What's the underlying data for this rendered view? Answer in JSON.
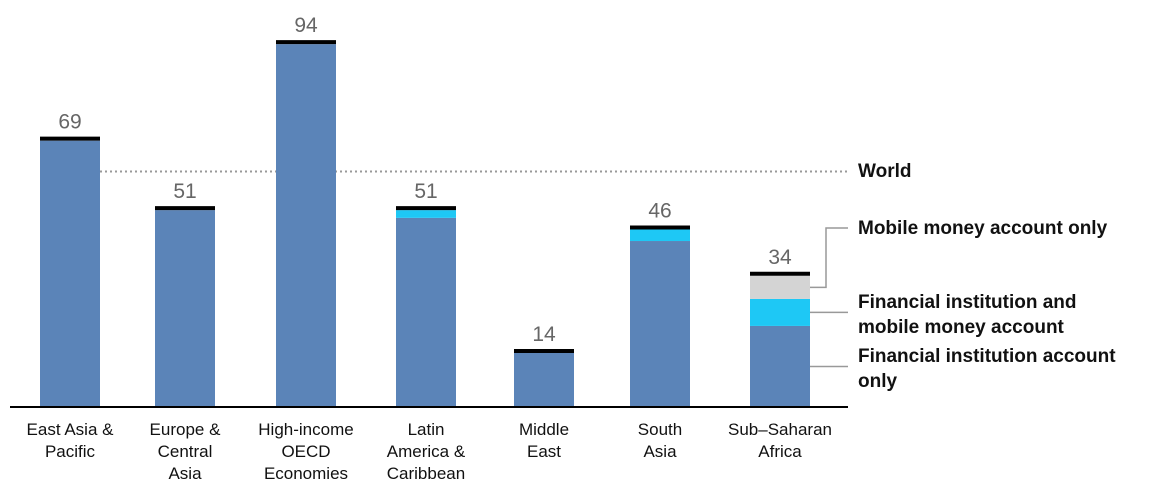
{
  "chart_data": {
    "type": "stacked_bar",
    "categories": [
      "East Asia & Pacific",
      "Europe & Central Asia",
      "High-income OECD Economies",
      "Latin America & Caribbean",
      "Middle East",
      "South Asia",
      "Sub–Saharan Africa"
    ],
    "series": [
      {
        "name": "Financial institution account only",
        "color": "#5b84b8",
        "values": [
          69,
          51,
          94,
          49,
          14,
          43,
          21
        ]
      },
      {
        "name": "Financial institution and mobile money account",
        "color": "#1ec8f5",
        "values": [
          0,
          0,
          0,
          2,
          0,
          3,
          7
        ]
      },
      {
        "name": "Mobile money account only",
        "color": "#d4d4d4",
        "values": [
          0,
          0,
          0,
          0,
          0,
          0,
          6
        ]
      }
    ],
    "totals": [
      69,
      51,
      94,
      51,
      14,
      46,
      34
    ],
    "world": {
      "label": "World",
      "value": 61
    },
    "ylim": [
      0,
      100
    ]
  }
}
